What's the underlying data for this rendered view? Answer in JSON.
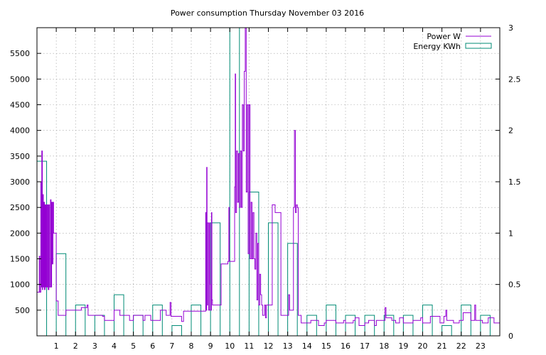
{
  "chart_data": {
    "type": "bar",
    "title": "Power consumption Thursday November 03 2016",
    "legend_position": "top-right",
    "grid": true,
    "x_ticks": [
      "1",
      "2",
      "3",
      "4",
      "5",
      "6",
      "7",
      "8",
      "9",
      "10",
      "11",
      "12",
      "13",
      "14",
      "15",
      "16",
      "17",
      "18",
      "19",
      "20",
      "21",
      "22",
      "23"
    ],
    "xlim": [
      0,
      24
    ],
    "y_left": {
      "ticks": [
        500,
        1000,
        1500,
        2000,
        2500,
        3000,
        3500,
        4000,
        4500,
        5000,
        5500
      ],
      "lim": [
        0,
        6000
      ]
    },
    "y_right": {
      "ticks": [
        0,
        0.5,
        1,
        1.5,
        2,
        2.5,
        3
      ],
      "lim": [
        0,
        3
      ]
    },
    "series": [
      {
        "name": "Power W",
        "axis": "left",
        "style": "line",
        "color": "#9400d3",
        "points": [
          [
            0,
            850
          ],
          [
            0.1,
            850
          ],
          [
            0.12,
            1550
          ],
          [
            0.15,
            850
          ],
          [
            0.2,
            3000
          ],
          [
            0.22,
            950
          ],
          [
            0.25,
            3600
          ],
          [
            0.28,
            900
          ],
          [
            0.3,
            2750
          ],
          [
            0.33,
            950
          ],
          [
            0.36,
            2600
          ],
          [
            0.39,
            900
          ],
          [
            0.42,
            2550
          ],
          [
            0.45,
            950
          ],
          [
            0.48,
            2550
          ],
          [
            0.51,
            950
          ],
          [
            0.55,
            2550
          ],
          [
            0.58,
            900
          ],
          [
            0.62,
            2550
          ],
          [
            0.65,
            950
          ],
          [
            0.7,
            2650
          ],
          [
            0.73,
            950
          ],
          [
            0.76,
            2600
          ],
          [
            0.8,
            1400
          ],
          [
            0.83,
            2600
          ],
          [
            0.86,
            2000
          ],
          [
            0.9,
            2000
          ],
          [
            0.95,
            2000
          ],
          [
            1.0,
            680
          ],
          [
            1.05,
            680
          ],
          [
            1.1,
            400
          ],
          [
            1.45,
            400
          ],
          [
            1.5,
            500
          ],
          [
            2.2,
            500
          ],
          [
            2.3,
            550
          ],
          [
            2.55,
            550
          ],
          [
            2.6,
            600
          ],
          [
            2.65,
            400
          ],
          [
            3.0,
            400
          ],
          [
            3.4,
            380
          ],
          [
            3.5,
            300
          ],
          [
            3.9,
            300
          ],
          [
            4.0,
            500
          ],
          [
            4.2,
            500
          ],
          [
            4.3,
            400
          ],
          [
            4.7,
            400
          ],
          [
            4.8,
            300
          ],
          [
            5.0,
            400
          ],
          [
            5.4,
            400
          ],
          [
            5.5,
            300
          ],
          [
            5.6,
            400
          ],
          [
            5.9,
            300
          ],
          [
            6.3,
            300
          ],
          [
            6.4,
            500
          ],
          [
            6.6,
            500
          ],
          [
            6.7,
            400
          ],
          [
            6.9,
            650
          ],
          [
            6.95,
            380
          ],
          [
            7.4,
            380
          ],
          [
            7.5,
            280
          ],
          [
            7.6,
            480
          ],
          [
            8.7,
            480
          ],
          [
            8.75,
            2400
          ],
          [
            8.78,
            500
          ],
          [
            8.8,
            3280
          ],
          [
            8.82,
            600
          ],
          [
            8.85,
            2200
          ],
          [
            8.9,
            500
          ],
          [
            8.95,
            2200
          ],
          [
            8.98,
            1000
          ],
          [
            9.0,
            500
          ],
          [
            9.05,
            2400
          ],
          [
            9.07,
            700
          ],
          [
            9.1,
            600
          ],
          [
            9.5,
            600
          ],
          [
            9.55,
            1400
          ],
          [
            9.9,
            1450
          ],
          [
            9.95,
            2500
          ],
          [
            9.97,
            1450
          ],
          [
            10.2,
            1450
          ],
          [
            10.25,
            2900
          ],
          [
            10.28,
            5100
          ],
          [
            10.3,
            2400
          ],
          [
            10.35,
            3600
          ],
          [
            10.4,
            2600
          ],
          [
            10.45,
            3550
          ],
          [
            10.5,
            2500
          ],
          [
            10.55,
            3600
          ],
          [
            10.6,
            2500
          ],
          [
            10.65,
            4500
          ],
          [
            10.7,
            3600
          ],
          [
            10.75,
            5150
          ],
          [
            10.8,
            6000
          ],
          [
            10.85,
            2800
          ],
          [
            10.9,
            4500
          ],
          [
            10.95,
            1600
          ],
          [
            11.0,
            4500
          ],
          [
            11.05,
            1500
          ],
          [
            11.1,
            2600
          ],
          [
            11.15,
            1500
          ],
          [
            11.2,
            2400
          ],
          [
            11.25,
            1500
          ],
          [
            11.3,
            1300
          ],
          [
            11.35,
            2000
          ],
          [
            11.4,
            700
          ],
          [
            11.45,
            1800
          ],
          [
            11.5,
            600
          ],
          [
            11.55,
            1200
          ],
          [
            11.6,
            800
          ],
          [
            11.65,
            600
          ],
          [
            11.7,
            400
          ],
          [
            11.8,
            600
          ],
          [
            11.85,
            350
          ],
          [
            11.9,
            600
          ],
          [
            12.0,
            600
          ],
          [
            12.2,
            2550
          ],
          [
            12.3,
            2550
          ],
          [
            12.35,
            2400
          ],
          [
            12.6,
            2400
          ],
          [
            12.65,
            400
          ],
          [
            13.0,
            400
          ],
          [
            13.05,
            800
          ],
          [
            13.1,
            500
          ],
          [
            13.2,
            500
          ],
          [
            13.3,
            2500
          ],
          [
            13.35,
            4000
          ],
          [
            13.4,
            2400
          ],
          [
            13.45,
            2550
          ],
          [
            13.5,
            2500
          ],
          [
            13.55,
            400
          ],
          [
            13.7,
            250
          ],
          [
            14.0,
            250
          ],
          [
            14.2,
            300
          ],
          [
            14.5,
            300
          ],
          [
            14.6,
            200
          ],
          [
            14.9,
            250
          ],
          [
            15.0,
            300
          ],
          [
            15.4,
            300
          ],
          [
            15.5,
            250
          ],
          [
            15.9,
            300
          ],
          [
            16.0,
            250
          ],
          [
            16.4,
            300
          ],
          [
            16.5,
            350
          ],
          [
            16.7,
            200
          ],
          [
            17.0,
            250
          ],
          [
            17.2,
            300
          ],
          [
            17.5,
            200
          ],
          [
            17.6,
            300
          ],
          [
            18.0,
            300
          ],
          [
            18.05,
            550
          ],
          [
            18.1,
            350
          ],
          [
            18.4,
            300
          ],
          [
            18.6,
            250
          ],
          [
            18.8,
            350
          ],
          [
            19.0,
            250
          ],
          [
            19.4,
            250
          ],
          [
            19.5,
            300
          ],
          [
            19.8,
            300
          ],
          [
            19.9,
            350
          ],
          [
            20.0,
            250
          ],
          [
            20.4,
            380
          ],
          [
            20.8,
            380
          ],
          [
            20.9,
            250
          ],
          [
            21.1,
            380
          ],
          [
            21.2,
            500
          ],
          [
            21.25,
            300
          ],
          [
            21.5,
            300
          ],
          [
            21.6,
            250
          ],
          [
            21.9,
            300
          ],
          [
            22.1,
            450
          ],
          [
            22.4,
            450
          ],
          [
            22.5,
            300
          ],
          [
            22.7,
            600
          ],
          [
            22.75,
            300
          ],
          [
            23.0,
            300
          ],
          [
            23.1,
            250
          ],
          [
            23.4,
            350
          ],
          [
            23.6,
            350
          ],
          [
            23.7,
            250
          ],
          [
            24.0,
            250
          ]
        ]
      },
      {
        "name": "Energy KWh",
        "axis": "right",
        "style": "step",
        "color": "#008b75",
        "hours": [
          0,
          1,
          2,
          3,
          4,
          5,
          6,
          7,
          8,
          9,
          10,
          11,
          12,
          13,
          14,
          15,
          16,
          17,
          18,
          19,
          20,
          21,
          22,
          23
        ],
        "values": [
          1.7,
          0.8,
          0.3,
          0.2,
          0.4,
          0.2,
          0.3,
          0.1,
          0.3,
          1.1,
          3.0,
          1.4,
          1.1,
          0.9,
          0.2,
          0.3,
          0.2,
          0.2,
          0.2,
          0.2,
          0.3,
          0.1,
          0.3,
          0.2
        ]
      }
    ]
  }
}
